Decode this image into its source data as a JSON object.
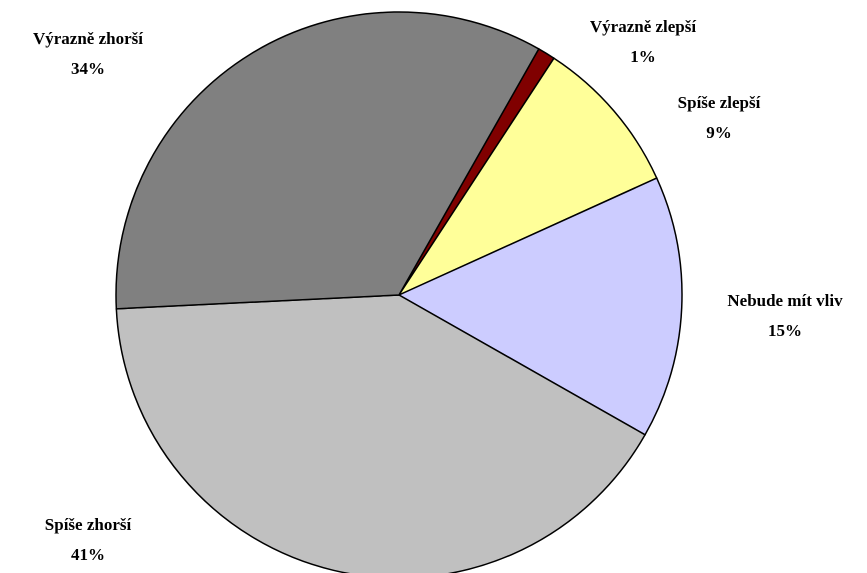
{
  "chart_data": {
    "type": "pie",
    "categories": [
      "Výrazně zlepší",
      "Spíše zlepší",
      "Nebude mít vliv",
      "Spíše zhorší",
      "Výrazně zhorší"
    ],
    "values": [
      1,
      9,
      15,
      41,
      34
    ],
    "value_labels": [
      "1%",
      "9%",
      "15%",
      "41%",
      "34%"
    ],
    "colors": [
      "#800000",
      "#ffff99",
      "#ccccff",
      "#c0c0c0",
      "#808080"
    ]
  }
}
